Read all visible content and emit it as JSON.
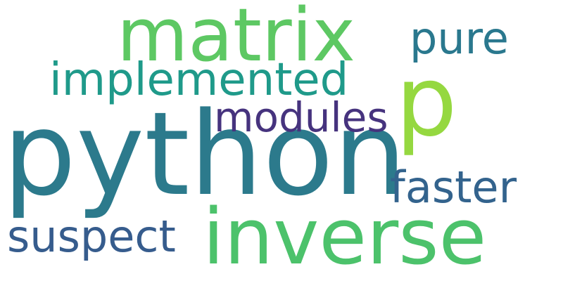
{
  "words": {
    "python": {
      "text": "python",
      "color": "#2c7a8c"
    },
    "inverse": {
      "text": "inverse",
      "color": "#4cc26b"
    },
    "matrix": {
      "text": "matrix",
      "color": "#5dc863"
    },
    "p": {
      "text": "p",
      "color": "#95d840"
    },
    "implemented": {
      "text": "implemented",
      "color": "#1f9a8a"
    },
    "modules": {
      "text": "modules",
      "color": "#46337e"
    },
    "faster": {
      "text": "faster",
      "color": "#33638d"
    },
    "suspect": {
      "text": "suspect",
      "color": "#365c8d"
    },
    "pure": {
      "text": "pure",
      "color": "#2a788e"
    }
  }
}
